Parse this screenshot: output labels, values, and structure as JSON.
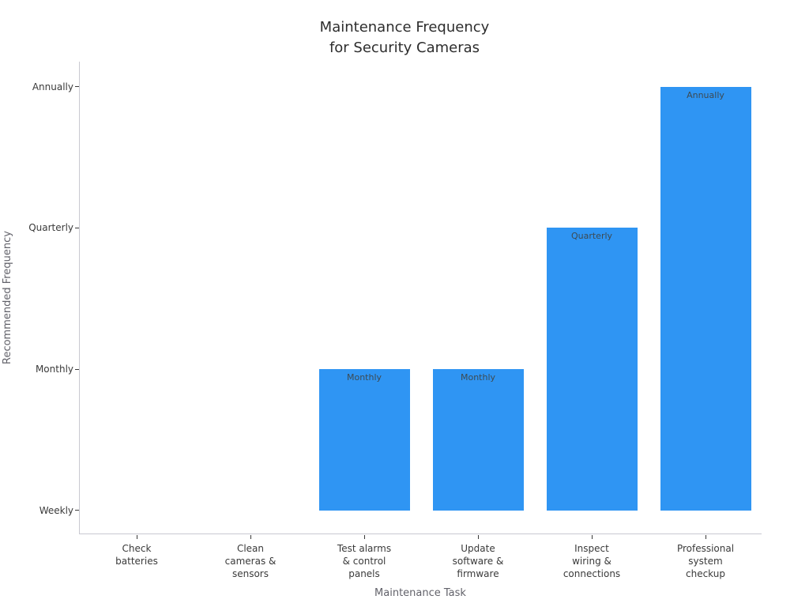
{
  "chart_data": {
    "type": "bar",
    "title": "Maintenance Frequency\nfor Security Cameras",
    "xlabel": "Maintenance Task",
    "ylabel": "Recommended Frequency",
    "categories": [
      "Check\nbatteries",
      "Clean\ncameras &\nsensors",
      "Test alarms\n& control\npanels",
      "Update\nsoftware &\nfirmware",
      "Inspect\nwiring &\nconnections",
      "Professional\nsystem\ncheckup"
    ],
    "values": [
      0,
      0,
      1,
      1,
      2,
      3
    ],
    "bar_labels": [
      "",
      "",
      "Monthly",
      "Monthly",
      "Quarterly",
      "Annually"
    ],
    "frequency_per_task": [
      "Weekly",
      "Weekly",
      "Monthly",
      "Monthly",
      "Quarterly",
      "Annually"
    ],
    "ytick_labels": [
      "Weekly",
      "Monthly",
      "Quarterly",
      "Annually"
    ],
    "ytick_values": [
      0,
      1,
      2,
      3
    ],
    "ylim": [
      -0.168,
      3.177
    ],
    "grid": false,
    "legend": null,
    "bar_color": "#2F95F3",
    "bar_label_color": "#3D4A52",
    "text_color": "#3a3a3a",
    "axis_title_color": "#62626a",
    "spine_color": "#c9c9d1",
    "background_color": "#ffffff"
  }
}
